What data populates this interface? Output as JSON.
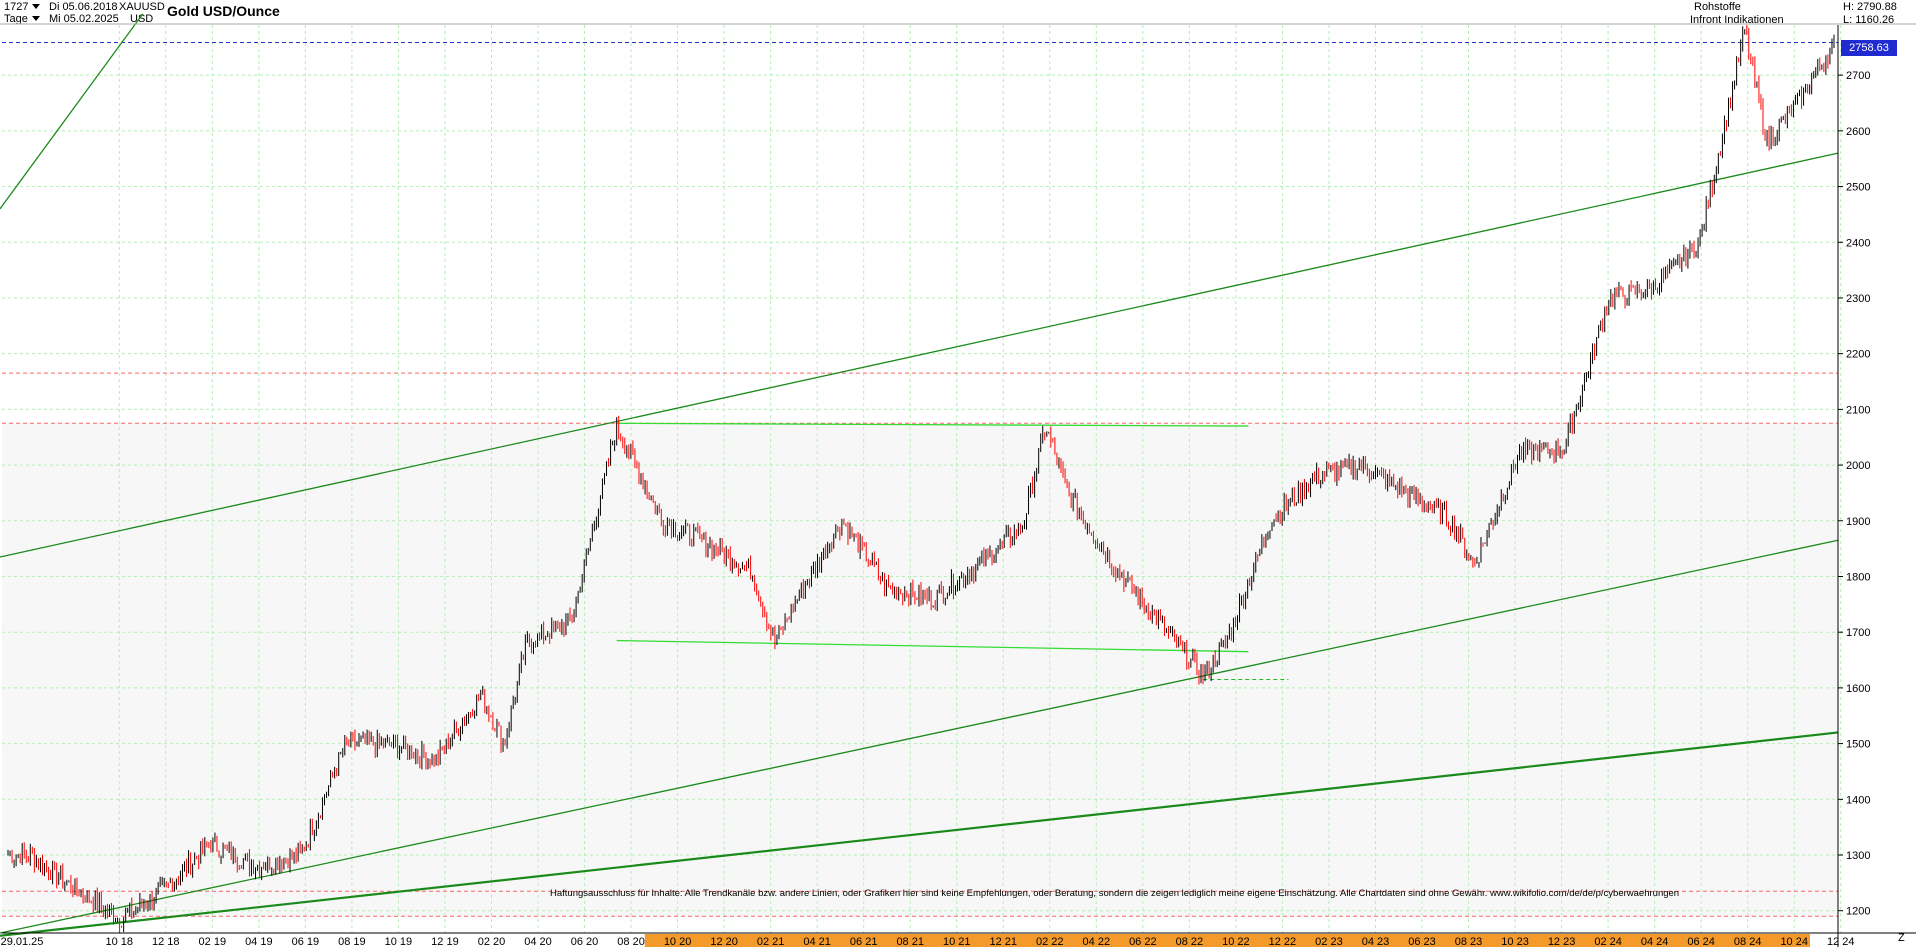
{
  "header": {
    "bars": "1727",
    "period": "Tage",
    "date_start": "Di 05.06.2018",
    "date_end": "Mi 05.02.2025",
    "symbol": "XAUUSD",
    "currency": "USD",
    "category": "Rohstoffe",
    "source": "Infront Indikationen",
    "high": "H: 2790.88",
    "low": "L: 1160.26"
  },
  "toolbar_z": "Z",
  "chart_data": {
    "type": "line",
    "title": "Gold USD/Ounce",
    "disclaimer": "Haftungsausschluss für Inhalte: Alle Trendkanäle bzw. andere Linien, oder Grafiken hier sind keine Empfehlungen, oder Beratung, sondern die zeigen lediglich meine eigene Einschätzung. Alle Chartdaten sind ohne Gewähr. www.wikifolio.com/de/de/p/cyberwaehrungen",
    "last_price": "2758.63",
    "ylim": [
      1160,
      2790
    ],
    "y_ticks": [
      1200,
      1300,
      1400,
      1500,
      1600,
      1700,
      1800,
      1900,
      2000,
      2100,
      2200,
      2300,
      2400,
      2500,
      2600,
      2700
    ],
    "x_ticks": [
      "29.01.25",
      "10 18",
      "12 18",
      "02 19",
      "04 19",
      "06 19",
      "08 19",
      "10 19",
      "12 19",
      "02 20",
      "04 20",
      "06 20",
      "08 20",
      "10 20",
      "12 20",
      "02 21",
      "04 21",
      "06 21",
      "08 21",
      "10 21",
      "12 21",
      "02 22",
      "04 22",
      "06 22",
      "08 22",
      "10 22",
      "12 22",
      "02 23",
      "04 23",
      "06 23",
      "08 23",
      "10 23",
      "12 23",
      "02 24",
      "04 24",
      "06 24",
      "08 24",
      "10 24",
      "12 24"
    ],
    "highlighted_x_from": "10 20",
    "grid": true,
    "colors": {
      "up": "#000000",
      "down": "#ff0000",
      "trend": "#1a8a1a",
      "trend_light": "#33dd33",
      "last_line": "#2233cc",
      "ref_line": "#ff6666",
      "axis_band": "#f39a2b"
    },
    "series": [
      {
        "x": [
          "2018-06",
          "2018-08",
          "2018-10",
          "2018-12",
          "2019-02",
          "2019-04",
          "2019-06",
          "2019-08",
          "2019-10",
          "2019-12",
          "2020-02",
          "2020-03",
          "2020-04",
          "2020-06",
          "2020-08",
          "2020-10",
          "2020-12",
          "2021-02",
          "2021-03",
          "2021-04",
          "2021-06",
          "2021-08",
          "2021-10",
          "2021-12",
          "2022-02",
          "2022-03",
          "2022-04",
          "2022-06",
          "2022-08",
          "2022-10",
          "2022-11",
          "2023-01",
          "2023-03",
          "2023-05",
          "2023-07",
          "2023-09",
          "2023-10",
          "2023-12",
          "2024-02",
          "2024-04",
          "2024-06",
          "2024-08",
          "2024-10",
          "2024-11",
          "2024-12",
          "2025-02"
        ],
        "values": [
          1300,
          1240,
          1185,
          1240,
          1320,
          1280,
          1300,
          1500,
          1500,
          1470,
          1590,
          1500,
          1680,
          1720,
          2070,
          1900,
          1860,
          1810,
          1680,
          1760,
          1900,
          1780,
          1760,
          1820,
          1890,
          2070,
          1950,
          1820,
          1720,
          1620,
          1680,
          1900,
          1980,
          2000,
          1950,
          1900,
          1820,
          2020,
          2030,
          2300,
          2320,
          2400,
          2780,
          2580,
          2630,
          2758
        ]
      }
    ],
    "trend_lines": [
      {
        "from": [
          "2018-06",
          2460
        ],
        "to": [
          "2018-11",
          2810
        ]
      },
      {
        "from": [
          "2018-06",
          1835
        ],
        "to": [
          "2025-02",
          2560
        ]
      },
      {
        "from": [
          "2018-06",
          1160
        ],
        "to": [
          "2025-02",
          1865
        ]
      },
      {
        "from": [
          "2018-06",
          1155
        ],
        "to": [
          "2025-02",
          1520
        ]
      },
      {
        "from": [
          "2020-08",
          2075
        ],
        "to": [
          "2022-12",
          2070
        ]
      },
      {
        "from": [
          "2020-08",
          1685
        ],
        "to": [
          "2022-12",
          1665
        ]
      }
    ],
    "horizontal_levels": [
      {
        "value": 2758.63,
        "style": "blue-dashed"
      },
      {
        "value": 2165,
        "style": "red-dashed"
      },
      {
        "value": 2075,
        "style": "red-dashed"
      },
      {
        "value": 1615,
        "style": "green-dashed",
        "from": "2022-10"
      },
      {
        "value": 1235,
        "style": "red-dashed"
      },
      {
        "value": 1190,
        "style": "red-dashed"
      }
    ]
  }
}
